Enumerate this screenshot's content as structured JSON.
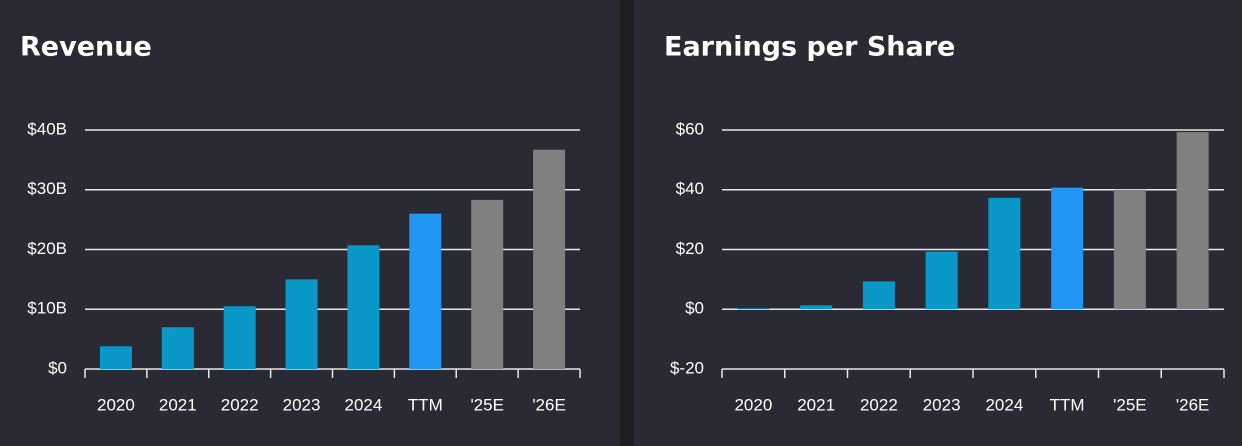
{
  "chart_data": [
    {
      "type": "bar",
      "title": "Revenue",
      "categories": [
        "2020",
        "2021",
        "2022",
        "2023",
        "2024",
        "TTM",
        "'25E",
        "'26E"
      ],
      "values": [
        3.8,
        7.0,
        10.5,
        15.0,
        20.7,
        26.0,
        28.3,
        36.7
      ],
      "colors": [
        "#0a98c9",
        "#0a98c9",
        "#0a98c9",
        "#0a98c9",
        "#0a98c9",
        "#2196f3",
        "#808080",
        "#808080"
      ],
      "ylim": [
        0,
        40
      ],
      "yticks": [
        {
          "value": 0,
          "label": "$0"
        },
        {
          "value": 10,
          "label": "$10B"
        },
        {
          "value": 20,
          "label": "$20B"
        },
        {
          "value": 30,
          "label": "$30B"
        },
        {
          "value": 40,
          "label": "$40B"
        }
      ],
      "grid": true
    },
    {
      "type": "bar",
      "title": "Earnings per Share",
      "categories": [
        "2020",
        "2021",
        "2022",
        "2023",
        "2024",
        "TTM",
        "'25E",
        "'26E"
      ],
      "values": [
        0.3,
        1.3,
        9.3,
        19.3,
        37.3,
        40.7,
        40.0,
        59.3
      ],
      "colors": [
        "#0a98c9",
        "#0a98c9",
        "#0a98c9",
        "#0a98c9",
        "#0a98c9",
        "#2196f3",
        "#808080",
        "#808080"
      ],
      "ylim": [
        -20,
        60
      ],
      "yticks": [
        {
          "value": -20,
          "label": "$-20"
        },
        {
          "value": 0,
          "label": "$0"
        },
        {
          "value": 20,
          "label": "$20"
        },
        {
          "value": 40,
          "label": "$40"
        },
        {
          "value": 60,
          "label": "$60"
        }
      ],
      "grid": true
    }
  ]
}
